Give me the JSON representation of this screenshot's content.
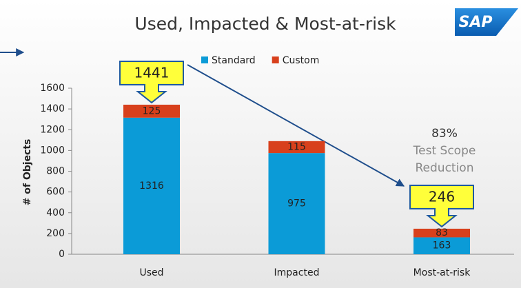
{
  "chart_data": {
    "type": "stacked_bar",
    "title": "Used, Impacted & Most-at-risk",
    "logo": "SAP",
    "y_label": "# of Objects",
    "categories": [
      "Used",
      "Impacted",
      "Most-at-risk"
    ],
    "series": [
      {
        "name": "Standard",
        "color": "#0b9bd7",
        "values": [
          1316,
          975,
          163
        ]
      },
      {
        "name": "Custom",
        "color": "#d8401c",
        "values": [
          125,
          115,
          83
        ]
      }
    ],
    "totals": [
      1441,
      null,
      246
    ],
    "annotations": [
      "83%",
      "Test Scope",
      "Reduction"
    ],
    "ylim": [
      0,
      1600
    ],
    "yticks": [
      0,
      200,
      400,
      600,
      800,
      1000,
      1200,
      1400,
      1600
    ],
    "legend": "top"
  }
}
